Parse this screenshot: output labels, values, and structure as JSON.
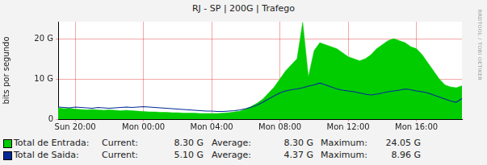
{
  "chart_data": {
    "type": "line",
    "title": "RJ - SP | 200G | Trafego",
    "y_label": "bits por segundo",
    "watermark": "RRDTOOL / TOBI OETIKER",
    "categories": [
      null,
      null,
      null,
      "Sun 20:00",
      null,
      null,
      null,
      null,
      null,
      null,
      null,
      null,
      null,
      null,
      null,
      "Mon 00:00",
      null,
      null,
      null,
      null,
      null,
      null,
      null,
      null,
      null,
      null,
      null,
      "Mon 04:00",
      null,
      null,
      null,
      null,
      null,
      null,
      null,
      null,
      null,
      null,
      null,
      "Mon 08:00",
      null,
      null,
      null,
      null,
      null,
      null,
      null,
      null,
      null,
      null,
      null,
      "Mon 12:00",
      null,
      null,
      null,
      null,
      null,
      null,
      null,
      null,
      null,
      null,
      null,
      "Mon 16:00",
      null,
      null,
      null,
      null,
      null,
      null,
      null,
      null
    ],
    "series": [
      {
        "name": "Total de Entrada:",
        "type": "area",
        "color": "#00cc00",
        "values": [
          2.8,
          2.6,
          2.7,
          2.5,
          2.4,
          2.3,
          2.4,
          2.3,
          2.2,
          2.3,
          2.2,
          2.1,
          2.2,
          2.1,
          2.0,
          1.9,
          1.8,
          1.8,
          1.7,
          1.7,
          1.6,
          1.6,
          1.5,
          1.5,
          1.5,
          1.4,
          1.4,
          1.4,
          1.4,
          1.5,
          1.6,
          1.8,
          2.0,
          2.5,
          3.2,
          4.0,
          5.0,
          6.5,
          8.0,
          10.0,
          12.0,
          13.5,
          15.0,
          24.05,
          10.5,
          17.0,
          19.0,
          18.5,
          18.0,
          17.5,
          16.5,
          15.5,
          15.0,
          14.5,
          15.0,
          16.0,
          17.5,
          18.5,
          19.5,
          20.0,
          19.5,
          19.0,
          18.0,
          17.5,
          16.0,
          14.0,
          12.0,
          10.0,
          8.5,
          8.0,
          7.8,
          8.3
        ],
        "stats": [
          {
            "label": "Current:",
            "value": "8.30 G"
          },
          {
            "label": "Average:",
            "value": "8.30 G"
          },
          {
            "label": "Maximum:",
            "value": "24.05 G"
          }
        ]
      },
      {
        "name": "Total de Saida:",
        "type": "line",
        "color": "#002a97",
        "values": [
          3.0,
          2.9,
          2.8,
          3.0,
          2.9,
          2.8,
          2.7,
          2.9,
          2.8,
          2.7,
          2.8,
          2.9,
          3.0,
          2.9,
          3.0,
          3.1,
          3.0,
          2.9,
          2.8,
          2.7,
          2.6,
          2.5,
          2.4,
          2.3,
          2.2,
          2.1,
          2.0,
          2.0,
          1.9,
          1.9,
          2.0,
          2.1,
          2.3,
          2.6,
          3.0,
          3.5,
          4.2,
          5.0,
          5.8,
          6.5,
          7.0,
          7.3,
          7.5,
          7.8,
          8.2,
          8.5,
          8.96,
          8.5,
          8.0,
          7.5,
          7.2,
          7.0,
          6.8,
          6.5,
          6.2,
          6.0,
          6.2,
          6.5,
          6.8,
          7.0,
          7.2,
          7.5,
          7.3,
          7.0,
          6.8,
          6.5,
          6.0,
          5.5,
          5.0,
          4.5,
          4.2,
          5.1
        ],
        "stats": [
          {
            "label": "Current:",
            "value": "5.10 G"
          },
          {
            "label": "Average:",
            "value": "4.37 G"
          },
          {
            "label": "Maximum:",
            "value": "8.96 G"
          }
        ]
      }
    ],
    "ylim": [
      0,
      24.2
    ],
    "yticks": [
      0,
      {
        "value": 10,
        "label": "10 G"
      },
      {
        "value": 20,
        "label": "20 G"
      }
    ],
    "grid": true,
    "legend": "bottom"
  }
}
